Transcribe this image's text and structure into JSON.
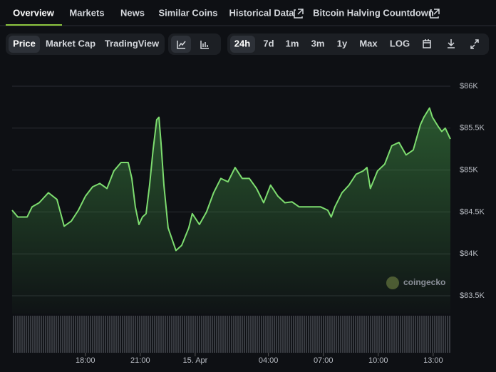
{
  "nav": {
    "tabs": [
      "Overview",
      "Markets",
      "News",
      "Similar Coins",
      "Historical Data",
      "Bitcoin Halving Countdown"
    ]
  },
  "toolbar": {
    "views": [
      "Price",
      "Market Cap",
      "TradingView"
    ],
    "ranges": [
      "24h",
      "7d",
      "1m",
      "3m",
      "1y",
      "Max",
      "LOG"
    ]
  },
  "chart_data": {
    "type": "area",
    "color": "#7ddc6f",
    "watermark": "coingecko",
    "grid": true,
    "x": [
      14.0,
      14.31,
      14.82,
      15.09,
      15.48,
      15.98,
      16.45,
      16.84,
      17.23,
      17.62,
      18.01,
      18.4,
      18.79,
      19.18,
      19.56,
      19.95,
      20.34,
      20.54,
      20.73,
      20.93,
      21.12,
      21.32,
      21.51,
      21.7,
      21.9,
      22.02,
      22.13,
      22.29,
      22.52,
      22.79,
      22.95,
      23.26,
      23.65,
      23.84,
      24.23,
      24.62,
      25.01,
      25.4,
      25.79,
      26.18,
      26.57,
      26.96,
      27.35,
      27.74,
      28.12,
      28.51,
      28.9,
      29.29,
      29.68,
      30.07,
      30.46,
      30.85,
      31.24,
      31.43,
      31.63,
      32.02,
      32.4,
      32.79,
      33.18,
      33.38,
      33.57,
      33.96,
      34.35,
      34.74,
      35.13,
      35.52,
      35.91,
      36.3,
      36.49,
      36.8,
      36.96,
      37.27,
      37.47,
      37.66,
      37.94
    ],
    "values": [
      84520,
      84440,
      84440,
      84560,
      84610,
      84730,
      84650,
      84330,
      84390,
      84520,
      84690,
      84800,
      84840,
      84780,
      84990,
      85090,
      85090,
      84900,
      84560,
      84350,
      84440,
      84480,
      84820,
      85240,
      85600,
      85630,
      85330,
      84820,
      84310,
      84140,
      84040,
      84100,
      84310,
      84480,
      84350,
      84500,
      84730,
      84900,
      84860,
      85030,
      84900,
      84900,
      84780,
      84610,
      84820,
      84690,
      84610,
      84620,
      84560,
      84560,
      84560,
      84560,
      84520,
      84440,
      84560,
      84730,
      84820,
      84950,
      84990,
      85030,
      84780,
      84990,
      85070,
      85290,
      85330,
      85180,
      85240,
      85540,
      85630,
      85740,
      85630,
      85520,
      85460,
      85500,
      85370
    ],
    "xlim": [
      14,
      37.94
    ],
    "ylim": [
      83500,
      86000
    ],
    "xticks": [
      {
        "value": 18,
        "label": "18:00"
      },
      {
        "value": 21,
        "label": "21:00"
      },
      {
        "value": 24,
        "label": "15. Apr"
      },
      {
        "value": 28,
        "label": "04:00"
      },
      {
        "value": 31,
        "label": "07:00"
      },
      {
        "value": 34,
        "label": "10:00"
      },
      {
        "value": 37,
        "label": "13:00"
      }
    ],
    "yticks": [
      {
        "value": 83500,
        "label": "$83.5K"
      },
      {
        "value": 84000,
        "label": "$84K"
      },
      {
        "value": 84500,
        "label": "$84.5K"
      },
      {
        "value": 85000,
        "label": "$85K"
      },
      {
        "value": 85500,
        "label": "$85.5K"
      },
      {
        "value": 86000,
        "label": "$86K"
      }
    ]
  }
}
